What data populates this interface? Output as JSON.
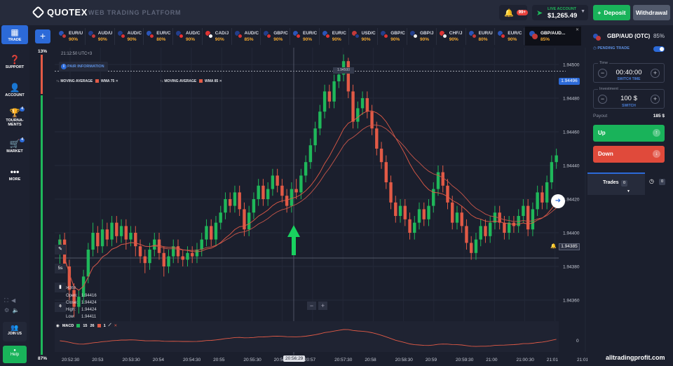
{
  "header": {
    "brand": "QUOTEX",
    "platform_label": "WEB TRADING PLATFORM",
    "notification_badge": "99+",
    "account_label": "LIVE ACCOUNT",
    "account_balance": "$1,265.49",
    "deposit_label": "Deposit",
    "withdraw_label": "Withdrawal"
  },
  "sidebar": {
    "items": [
      {
        "label": "TRADE",
        "icon": "chart-icon"
      },
      {
        "label": "SUPPORT",
        "icon": "question-icon"
      },
      {
        "label": "ACCOUNT",
        "icon": "user-icon"
      },
      {
        "label": "TOURNA-MENTS",
        "icon": "trophy-icon",
        "badge": "4"
      },
      {
        "label": "MARKET",
        "icon": "market-icon",
        "badge": "4"
      },
      {
        "label": "MORE",
        "icon": "dots-icon"
      }
    ],
    "join_label": "JOIN US",
    "help_label": "Help"
  },
  "assets": {
    "tabs": [
      {
        "symbol": "EUR/U",
        "payout": "90%",
        "c1": "#2b55b8",
        "c2": "#c43a3a"
      },
      {
        "symbol": "AUD/U",
        "payout": "90%",
        "c1": "#233e8b",
        "c2": "#c43a3a"
      },
      {
        "symbol": "AUD/C",
        "payout": "90%",
        "c1": "#233e8b",
        "c2": "#d33"
      },
      {
        "symbol": "EUR/C",
        "payout": "80%",
        "c1": "#2b55b8",
        "c2": "#d33"
      },
      {
        "symbol": "AUD/C",
        "payout": "90%",
        "c1": "#233e8b",
        "c2": "#e33"
      },
      {
        "symbol": "CAD/J",
        "payout": "90%",
        "c1": "#d33",
        "c2": "#fff"
      },
      {
        "symbol": "AUD/C",
        "payout": "85%",
        "c1": "#233e8b",
        "c2": "#d33"
      },
      {
        "symbol": "GBP/C",
        "payout": "90%",
        "c1": "#233e8b",
        "c2": "#d33"
      },
      {
        "symbol": "EUR/C",
        "payout": "90%",
        "c1": "#2b55b8",
        "c2": "#d33"
      },
      {
        "symbol": "EUR/C",
        "payout": "90%",
        "c1": "#2b55b8",
        "c2": "#d33"
      },
      {
        "symbol": "USD/C",
        "payout": "90%",
        "c1": "#c43a3a",
        "c2": "#233e8b"
      },
      {
        "symbol": "GBP/C",
        "payout": "90%",
        "c1": "#233e8b",
        "c2": "#d33"
      },
      {
        "symbol": "GBP/J",
        "payout": "90%",
        "c1": "#233e8b",
        "c2": "#eee"
      },
      {
        "symbol": "CHF/J",
        "payout": "90%",
        "c1": "#d33",
        "c2": "#eee"
      },
      {
        "symbol": "EUR/U",
        "payout": "80%",
        "c1": "#2b55b8",
        "c2": "#c43a3a"
      },
      {
        "symbol": "EUR/C",
        "payout": "90%",
        "c1": "#2b55b8",
        "c2": "#d33"
      }
    ],
    "active": {
      "symbol": "GBP/AUD...",
      "payout": "85%"
    }
  },
  "chart": {
    "top_percent": "13%",
    "bottom_percent": "87%",
    "clock": "21:12:50  UTC+3",
    "pair_info_label": "PAIR INFORMATION",
    "indicators": [
      {
        "name": "MOVING AVERAGE",
        "kind": "WMA",
        "period": "75"
      },
      {
        "name": "MOVING AVERAGE",
        "kind": "WMA",
        "period": "85"
      }
    ],
    "current_price": "1.94496",
    "open_price_marker": "1.94385",
    "left_strike_price": "1.94360",
    "top_marker": "1.94500",
    "timeframe": "5s",
    "ohlc": {
      "open": "1.94416",
      "close": "1.94424",
      "high": "1.94424",
      "low": "1.94411"
    },
    "macd": {
      "label": "MACD",
      "fast": "15",
      "slow": "26",
      "signal": "1",
      "zero": "0"
    },
    "current_time": "20:56:29",
    "watermark": "alltradingprofit.com"
  },
  "chart_data": {
    "type": "candlestick",
    "y_axis_ticks": [
      "1.94500",
      "1.94480",
      "1.94460",
      "1.94440",
      "1.94420",
      "1.94400",
      "1.94380",
      "1.94360"
    ],
    "x_axis_ticks": [
      "20:52:30",
      "20:53",
      "20:53:30",
      "20:54",
      "20:54:30",
      "20:55",
      "20:55:30",
      "20:56",
      "20:57",
      "20:57:30",
      "20:58",
      "20:58:30",
      "20:59",
      "20:59:30",
      "21:00",
      "21:00:30",
      "21:01",
      "21:01:30"
    ],
    "ylim": [
      1.9435,
      1.9451
    ],
    "candles": [
      [
        1.9439,
        1.94396,
        1.94399,
        1.9438
      ],
      [
        1.94396,
        1.9438,
        1.944,
        1.94376
      ],
      [
        1.9438,
        1.94366,
        1.94384,
        1.9436
      ],
      [
        1.94366,
        1.94356,
        1.9437,
        1.9435
      ],
      [
        1.94356,
        1.94362,
        1.94366,
        1.94352
      ],
      [
        1.94362,
        1.94374,
        1.94378,
        1.94358
      ],
      [
        1.94374,
        1.9439,
        1.94394,
        1.9437
      ],
      [
        1.9439,
        1.944,
        1.94406,
        1.94386
      ],
      [
        1.944,
        1.94392,
        1.94404,
        1.94388
      ],
      [
        1.94392,
        1.94402,
        1.94408,
        1.94388
      ],
      [
        1.94402,
        1.94396,
        1.94406,
        1.94392
      ],
      [
        1.94396,
        1.94406,
        1.9441,
        1.94392
      ],
      [
        1.94406,
        1.94398,
        1.9441,
        1.94394
      ],
      [
        1.94398,
        1.94404,
        1.94408,
        1.94394
      ],
      [
        1.94404,
        1.94396,
        1.94408,
        1.9439
      ],
      [
        1.94396,
        1.944,
        1.94404,
        1.94392
      ],
      [
        1.944,
        1.94392,
        1.94404,
        1.94386
      ],
      [
        1.94392,
        1.94386,
        1.94396,
        1.94382
      ],
      [
        1.94386,
        1.94382,
        1.9439,
        1.94376
      ],
      [
        1.94382,
        1.9439,
        1.94394,
        1.94378
      ],
      [
        1.9439,
        1.94396,
        1.944,
        1.94386
      ],
      [
        1.94396,
        1.94388,
        1.944,
        1.94384
      ],
      [
        1.94388,
        1.9438,
        1.94392,
        1.94374
      ],
      [
        1.9438,
        1.94386,
        1.9439,
        1.94376
      ],
      [
        1.94386,
        1.94392,
        1.94396,
        1.94382
      ],
      [
        1.94392,
        1.94386,
        1.94396,
        1.94382
      ],
      [
        1.94386,
        1.94384,
        1.9439,
        1.9438
      ],
      [
        1.94384,
        1.94388,
        1.94392,
        1.9438
      ],
      [
        1.94388,
        1.94386,
        1.94392,
        1.94382
      ],
      [
        1.94386,
        1.9439,
        1.94394,
        1.94382
      ],
      [
        1.9439,
        1.94396,
        1.944,
        1.94386
      ],
      [
        1.94396,
        1.94404,
        1.94408,
        1.94392
      ],
      [
        1.94404,
        1.94396,
        1.94408,
        1.94392
      ],
      [
        1.94396,
        1.94406,
        1.9441,
        1.94392
      ],
      [
        1.94406,
        1.94412,
        1.94416,
        1.94402
      ],
      [
        1.94412,
        1.9442,
        1.94424,
        1.94408
      ],
      [
        1.9442,
        1.94416,
        1.94424,
        1.94412
      ],
      [
        1.94416,
        1.94424,
        1.94428,
        1.94412
      ],
      [
        1.94424,
        1.94414,
        1.94428,
        1.9441
      ],
      [
        1.94414,
        1.94402,
        1.94418,
        1.94398
      ],
      [
        1.94402,
        1.94412,
        1.94416,
        1.94398
      ],
      [
        1.94412,
        1.9442,
        1.94424,
        1.94408
      ],
      [
        1.9442,
        1.94428,
        1.94432,
        1.94416
      ],
      [
        1.94428,
        1.9442,
        1.94432,
        1.94416
      ],
      [
        1.9442,
        1.94426,
        1.9443,
        1.94416
      ],
      [
        1.94426,
        1.94434,
        1.94438,
        1.94422
      ],
      [
        1.94434,
        1.94428,
        1.94438,
        1.94424
      ],
      [
        1.94428,
        1.94422,
        1.94432,
        1.94418
      ],
      [
        1.94422,
        1.94416,
        1.94426,
        1.94412
      ],
      [
        1.94416,
        1.94426,
        1.9443,
        1.94412
      ],
      [
        1.94426,
        1.94424,
        1.94432,
        1.9442
      ],
      [
        1.94424,
        1.94434,
        1.94438,
        1.9442
      ],
      [
        1.94434,
        1.94442,
        1.94446,
        1.9443
      ],
      [
        1.94442,
        1.94452,
        1.94456,
        1.94438
      ],
      [
        1.94452,
        1.94462,
        1.94466,
        1.94448
      ],
      [
        1.94462,
        1.94472,
        1.94476,
        1.94458
      ],
      [
        1.94472,
        1.94484,
        1.94488,
        1.94468
      ],
      [
        1.94484,
        1.94478,
        1.94488,
        1.94474
      ],
      [
        1.94478,
        1.9449,
        1.94494,
        1.94474
      ],
      [
        1.9449,
        1.94494,
        1.94498,
        1.94486
      ],
      [
        1.94494,
        1.94502,
        1.94506,
        1.9449
      ],
      [
        1.94502,
        1.94484,
        1.94504,
        1.9448
      ],
      [
        1.94484,
        1.94466,
        1.94488,
        1.94462
      ],
      [
        1.94466,
        1.94474,
        1.94478,
        1.94462
      ],
      [
        1.94474,
        1.9448,
        1.94484,
        1.9447
      ],
      [
        1.9448,
        1.94472,
        1.94484,
        1.94468
      ],
      [
        1.94472,
        1.94462,
        1.94476,
        1.94458
      ],
      [
        1.94462,
        1.9445,
        1.94466,
        1.94446
      ],
      [
        1.9445,
        1.94442,
        1.94454,
        1.94438
      ],
      [
        1.94442,
        1.9443,
        1.94446,
        1.94426
      ],
      [
        1.9443,
        1.94418,
        1.94434,
        1.94414
      ],
      [
        1.94418,
        1.9441,
        1.94422,
        1.94406
      ],
      [
        1.9441,
        1.94416,
        1.9442,
        1.94406
      ],
      [
        1.94416,
        1.94408,
        1.9442,
        1.94404
      ],
      [
        1.94408,
        1.944,
        1.94412,
        1.94396
      ],
      [
        1.944,
        1.94406,
        1.9441,
        1.94396
      ],
      [
        1.94406,
        1.94414,
        1.94418,
        1.94402
      ],
      [
        1.94414,
        1.94408,
        1.94418,
        1.94404
      ],
      [
        1.94408,
        1.94416,
        1.9442,
        1.94404
      ],
      [
        1.94416,
        1.94426,
        1.9443,
        1.94412
      ],
      [
        1.94426,
        1.94436,
        1.9444,
        1.94422
      ],
      [
        1.94436,
        1.94428,
        1.9444,
        1.94424
      ],
      [
        1.94428,
        1.94418,
        1.94432,
        1.94414
      ],
      [
        1.94418,
        1.94406,
        1.94422,
        1.94402
      ],
      [
        1.94406,
        1.94412,
        1.94416,
        1.94402
      ],
      [
        1.94412,
        1.94404,
        1.94416,
        1.944
      ],
      [
        1.94404,
        1.94394,
        1.94408,
        1.9439
      ],
      [
        1.94394,
        1.94388,
        1.94398,
        1.94384
      ],
      [
        1.94388,
        1.94396,
        1.944,
        1.94384
      ],
      [
        1.94396,
        1.94404,
        1.94408,
        1.94392
      ],
      [
        1.94404,
        1.94398,
        1.94408,
        1.94394
      ],
      [
        1.94398,
        1.94406,
        1.9441,
        1.94394
      ],
      [
        1.94406,
        1.94412,
        1.94416,
        1.94402
      ],
      [
        1.94412,
        1.94406,
        1.94416,
        1.94402
      ],
      [
        1.94406,
        1.944,
        1.9441,
        1.94396
      ],
      [
        1.944,
        1.94406,
        1.9441,
        1.94396
      ],
      [
        1.94406,
        1.94404,
        1.9441,
        1.944
      ],
      [
        1.94404,
        1.9441,
        1.94414,
        1.944
      ],
      [
        1.9441,
        1.94416,
        1.9442,
        1.94406
      ],
      [
        1.94416,
        1.94402,
        1.9442,
        1.94398
      ],
      [
        1.94402,
        1.94414,
        1.94418,
        1.94398
      ],
      [
        1.94414,
        1.94424,
        1.94428,
        1.9441
      ],
      [
        1.94424,
        1.94418,
        1.94428,
        1.94414
      ],
      [
        1.94418,
        1.9443,
        1.94434,
        1.94414
      ],
      [
        1.9443,
        1.94442,
        1.94446,
        1.94426
      ],
      [
        1.94442,
        1.94446,
        1.9445,
        1.94438
      ]
    ]
  },
  "right_panel": {
    "asset": "GBP/AUD (OTC)",
    "payout_pct": "85%",
    "pending_label": "PENDING TRADE",
    "time_caption": "Time",
    "time_value": "00:40:00",
    "switch_time_label": "SWITCH TIME",
    "investment_caption": "Investment",
    "investment_value": "100 $",
    "switch_label": "SWITCH",
    "payout_label": "Payout",
    "payout_value": "185 $",
    "up_label": "Up",
    "down_label": "Down",
    "trades_label": "Trades",
    "trades_count": "0",
    "pending_count": "0"
  }
}
